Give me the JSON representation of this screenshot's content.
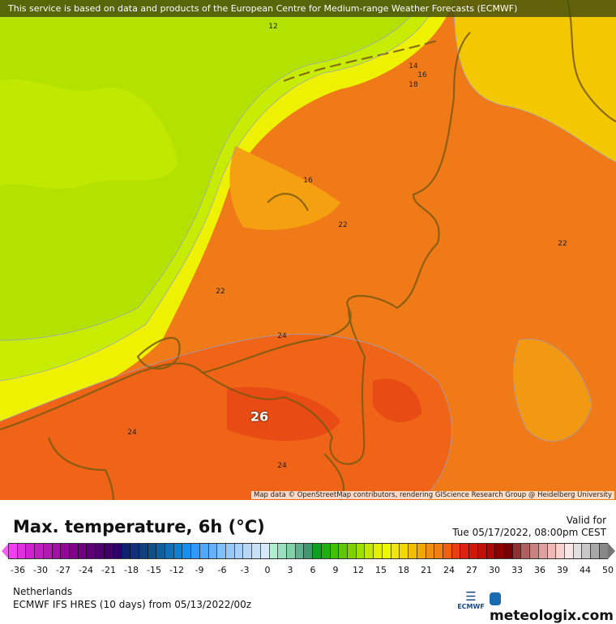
{
  "banner": "This service is based on data and products of the European Centre for Medium-range Weather Forecasts (ECMWF)",
  "attribution": "Map data © OpenStreetMap contributors, rendering GIScience Research Group @ Heidelberg University",
  "contour_labels": [
    {
      "text": "12",
      "big": false
    },
    {
      "text": "14",
      "big": false
    },
    {
      "text": "16",
      "big": false
    },
    {
      "text": "18",
      "big": false
    },
    {
      "text": "16",
      "big": false
    },
    {
      "text": "22",
      "big": false
    },
    {
      "text": "22",
      "big": false
    },
    {
      "text": "22",
      "big": false
    },
    {
      "text": "24",
      "big": false
    },
    {
      "text": "26",
      "big": true
    },
    {
      "text": "24",
      "big": false
    },
    {
      "text": "24",
      "big": false
    }
  ],
  "title": "Max. temperature, 6h (°C)",
  "valid_label": "Valid for",
  "valid_time": "Tue 05/17/2022, 08:00pm CEST",
  "colorbar": {
    "colors": [
      "#f040f0",
      "#e030e0",
      "#d020d0",
      "#c020c0",
      "#b018b0",
      "#a010a8",
      "#900898",
      "#800088",
      "#700080",
      "#600078",
      "#500070",
      "#400068",
      "#300068",
      "#102070",
      "#103078",
      "#104080",
      "#105088",
      "#1060a0",
      "#1070b8",
      "#1080d0",
      "#1890f0",
      "#3098f8",
      "#50a8f8",
      "#68b0f8",
      "#80c0f8",
      "#98c8f8",
      "#a8d0f8",
      "#b8d8f8",
      "#c8e0f8",
      "#d8e8f8",
      "#b0f0d0",
      "#98e0c0",
      "#80d0a8",
      "#60b090",
      "#409870",
      "#10a020",
      "#20b010",
      "#40c000",
      "#60c800",
      "#80d000",
      "#a0e000",
      "#c0e800",
      "#e0f000",
      "#f0f800",
      "#f0e800",
      "#f0d800",
      "#f0c000",
      "#f0a800",
      "#f09010",
      "#f08010",
      "#f06010",
      "#e84010",
      "#e02010",
      "#d01808",
      "#c01008",
      "#b00808",
      "#900000",
      "#780000",
      "#903030",
      "#b06060",
      "#c88080",
      "#e0a0a0",
      "#f0b8b8",
      "#f8d0d0",
      "#fae6e6",
      "#e0e0e0",
      "#c8c8c8",
      "#a8a8a8",
      "#888888"
    ],
    "ticks": [
      "-36",
      "-30",
      "-27",
      "-24",
      "-21",
      "-18",
      "-15",
      "-12",
      "-9",
      "-6",
      "-3",
      "0",
      "3",
      "6",
      "9",
      "12",
      "15",
      "18",
      "21",
      "24",
      "27",
      "30",
      "33",
      "36",
      "39",
      "44",
      "50"
    ]
  },
  "region": "Netherlands",
  "model_run": "ECMWF IFS HRES (10 days) from  05/13/2022/00z",
  "logos": {
    "ecmwf": "ECMWF",
    "meteologix": "meteologix.com"
  }
}
